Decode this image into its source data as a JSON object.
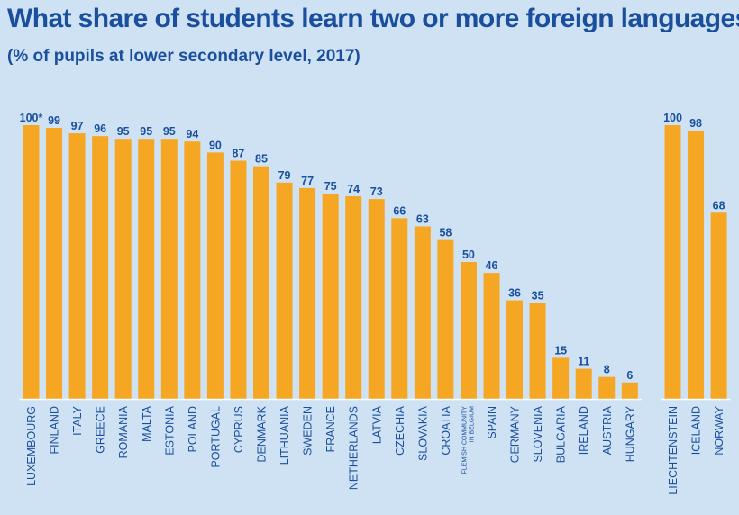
{
  "title": "What share of students learn two or more foreign languages?",
  "subtitle": "(% of pupils at lower secondary level, 2017)",
  "colors": {
    "bar": "#f5a623",
    "text": "#1a4f9e",
    "background": "#cfe2f4",
    "baseline": "#ffffff"
  },
  "chart_data": [
    {
      "type": "bar",
      "title": "What share of students learn two or more foreign languages?",
      "subtitle": "(% of pupils at lower secondary level, 2017)",
      "xlabel": "",
      "ylabel": "",
      "ylim": [
        0,
        100
      ],
      "grid": false,
      "categories": [
        "LUXEMBOURG",
        "FINLAND",
        "ITALY",
        "GREECE",
        "ROMANIA",
        "MALTA",
        "ESTONIA",
        "POLAND",
        "PORTUGAL",
        "CYPRUS",
        "DENMARK",
        "LITHUANIA",
        "SWEDEN",
        "FRANCE",
        "NETHERLANDS",
        "LATVIA",
        "CZECHIA",
        "SLOVAKIA",
        "CROATIA",
        "FLEMISH COMMUNITY IN BELGIUM",
        "SPAIN",
        "GERMANY",
        "SLOVENIA",
        "BULGARIA",
        "IRELAND",
        "AUSTRIA",
        "HUNGARY"
      ],
      "values": [
        100,
        99,
        97,
        96,
        95,
        95,
        95,
        94,
        90,
        87,
        85,
        79,
        77,
        75,
        74,
        73,
        66,
        63,
        58,
        50,
        46,
        36,
        35,
        15,
        11,
        8,
        6
      ],
      "value_labels": [
        "100*",
        "99",
        "97",
        "96",
        "95",
        "95",
        "95",
        "94",
        "90",
        "87",
        "85",
        "79",
        "77",
        "75",
        "74",
        "73",
        "66",
        "63",
        "58",
        "50",
        "46",
        "36",
        "35",
        "15",
        "11",
        "8",
        "6"
      ],
      "category_lines": [
        [
          "LUXEMBOURG"
        ],
        [
          "FINLAND"
        ],
        [
          "ITALY"
        ],
        [
          "GREECE"
        ],
        [
          "ROMANIA"
        ],
        [
          "MALTA"
        ],
        [
          "ESTONIA"
        ],
        [
          "POLAND"
        ],
        [
          "PORTUGAL"
        ],
        [
          "CYPRUS"
        ],
        [
          "DENMARK"
        ],
        [
          "LITHUANIA"
        ],
        [
          "SWEDEN"
        ],
        [
          "FRANCE"
        ],
        [
          "NETHERLANDS"
        ],
        [
          "LATVIA"
        ],
        [
          "CZECHIA"
        ],
        [
          "SLOVAKIA"
        ],
        [
          "CROATIA"
        ],
        [
          "FLEMISH COMMUNITY",
          "IN BELGIUM"
        ],
        [
          "SPAIN"
        ],
        [
          "GERMANY"
        ],
        [
          "SLOVENIA"
        ],
        [
          "BULGARIA"
        ],
        [
          "IRELAND"
        ],
        [
          "AUSTRIA"
        ],
        [
          "HUNGARY"
        ]
      ]
    },
    {
      "type": "bar",
      "xlabel": "",
      "ylabel": "",
      "ylim": [
        0,
        100
      ],
      "grid": false,
      "categories": [
        "LIECHTENSTEIN",
        "ICELAND",
        "NORWAY"
      ],
      "values": [
        100,
        98,
        68
      ],
      "value_labels": [
        "100",
        "98",
        "68"
      ],
      "category_lines": [
        [
          "LIECHTENSTEIN"
        ],
        [
          "ICELAND"
        ],
        [
          "NORWAY"
        ]
      ]
    }
  ]
}
